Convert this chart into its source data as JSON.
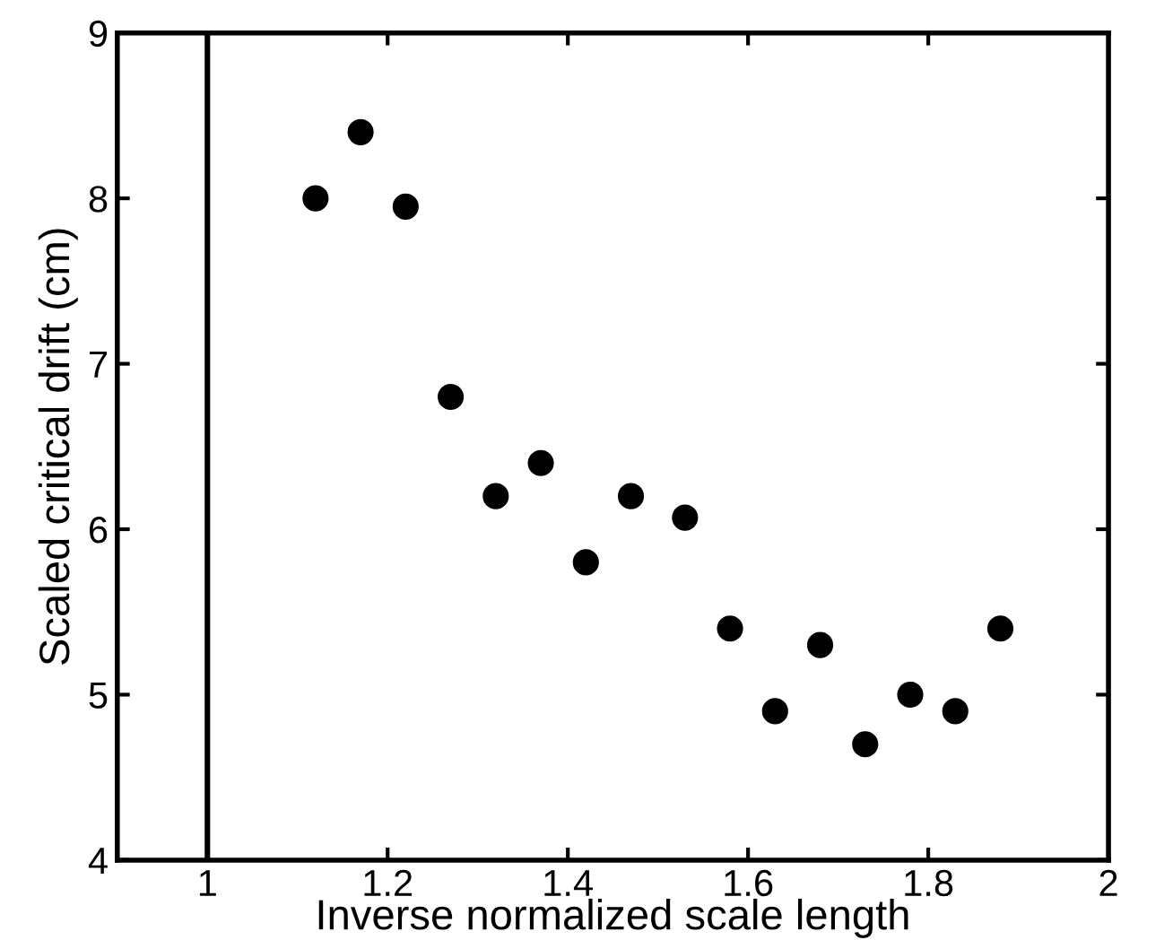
{
  "chart_data": {
    "type": "scatter",
    "xlabel": "Inverse normalized scale length",
    "ylabel": "Scaled critical drift (cm)",
    "x": [
      1.12,
      1.17,
      1.22,
      1.27,
      1.32,
      1.37,
      1.42,
      1.47,
      1.53,
      1.58,
      1.63,
      1.68,
      1.73,
      1.78,
      1.83,
      1.88
    ],
    "series": [
      {
        "color": "#000000",
        "values": [
          8.0,
          8.4,
          7.95,
          6.8,
          6.2,
          6.4,
          5.8,
          6.2,
          6.07,
          5.4,
          4.9,
          5.3,
          4.7,
          5.0,
          4.9,
          5.4
        ]
      }
    ],
    "xlim": [
      0.9,
      2
    ],
    "xticks": [
      1,
      1.2,
      1.4,
      1.6,
      1.8,
      2
    ],
    "ylim": [
      4,
      9
    ],
    "yticks": [
      4,
      5,
      6,
      7,
      8,
      9
    ],
    "ref_lines": [
      {
        "axis": "x",
        "value": 1,
        "color": "#000000"
      }
    ],
    "marker": "circle",
    "grid": false,
    "legend": false
  }
}
